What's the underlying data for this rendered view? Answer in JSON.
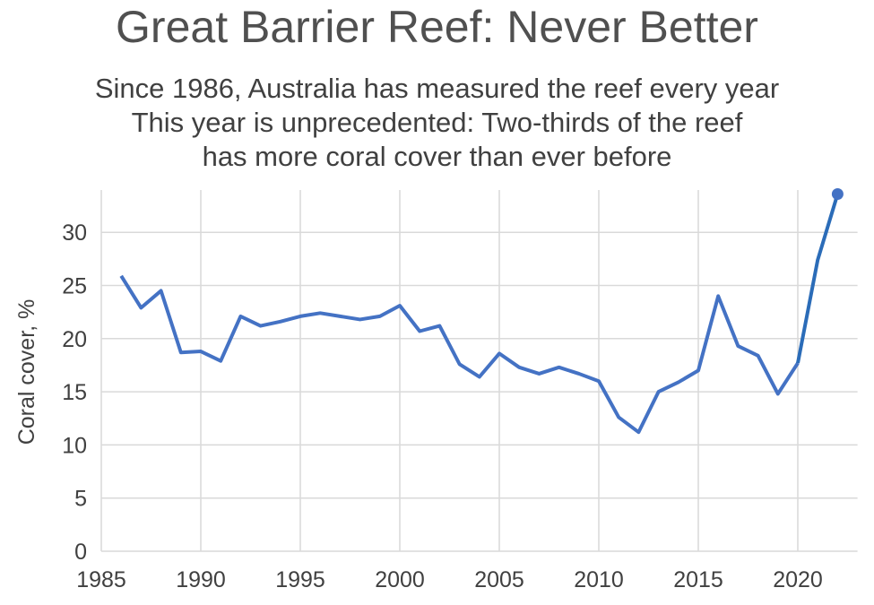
{
  "chart_data": {
    "type": "line",
    "title": "Great Barrier Reef: Never Better",
    "subtitle": [
      "Since 1986, Australia has measured the reef every year",
      "This year is unprecedented: Two-thirds of the reef",
      "has more coral cover than ever before"
    ],
    "xlabel": "",
    "ylabel": "Coral cover, %",
    "xlim": [
      1985,
      2023
    ],
    "ylim": [
      0,
      34
    ],
    "xticks": [
      1985,
      1990,
      1995,
      2000,
      2005,
      2010,
      2015,
      2020
    ],
    "yticks": [
      0,
      5,
      10,
      15,
      20,
      25,
      30
    ],
    "grid": true,
    "line_color": "#4472C4",
    "highlight_color": "#2B6CB8",
    "x": [
      1986,
      1987,
      1988,
      1989,
      1990,
      1991,
      1992,
      1993,
      1994,
      1995,
      1996,
      1997,
      1998,
      1999,
      2000,
      2001,
      2002,
      2003,
      2004,
      2005,
      2006,
      2007,
      2008,
      2009,
      2010,
      2011,
      2012,
      2013,
      2014,
      2015,
      2016,
      2017,
      2018,
      2019,
      2020,
      2021,
      2022
    ],
    "values": [
      25.9,
      22.9,
      24.5,
      18.7,
      18.8,
      17.9,
      22.1,
      21.2,
      21.6,
      22.1,
      22.4,
      22.1,
      21.8,
      22.1,
      23.1,
      20.7,
      21.2,
      17.6,
      16.4,
      18.6,
      17.3,
      16.7,
      17.3,
      16.7,
      16.0,
      12.6,
      11.2,
      15.0,
      15.9,
      17.0,
      24.0,
      19.3,
      18.4,
      14.8,
      17.7,
      27.4,
      33.6
    ]
  }
}
